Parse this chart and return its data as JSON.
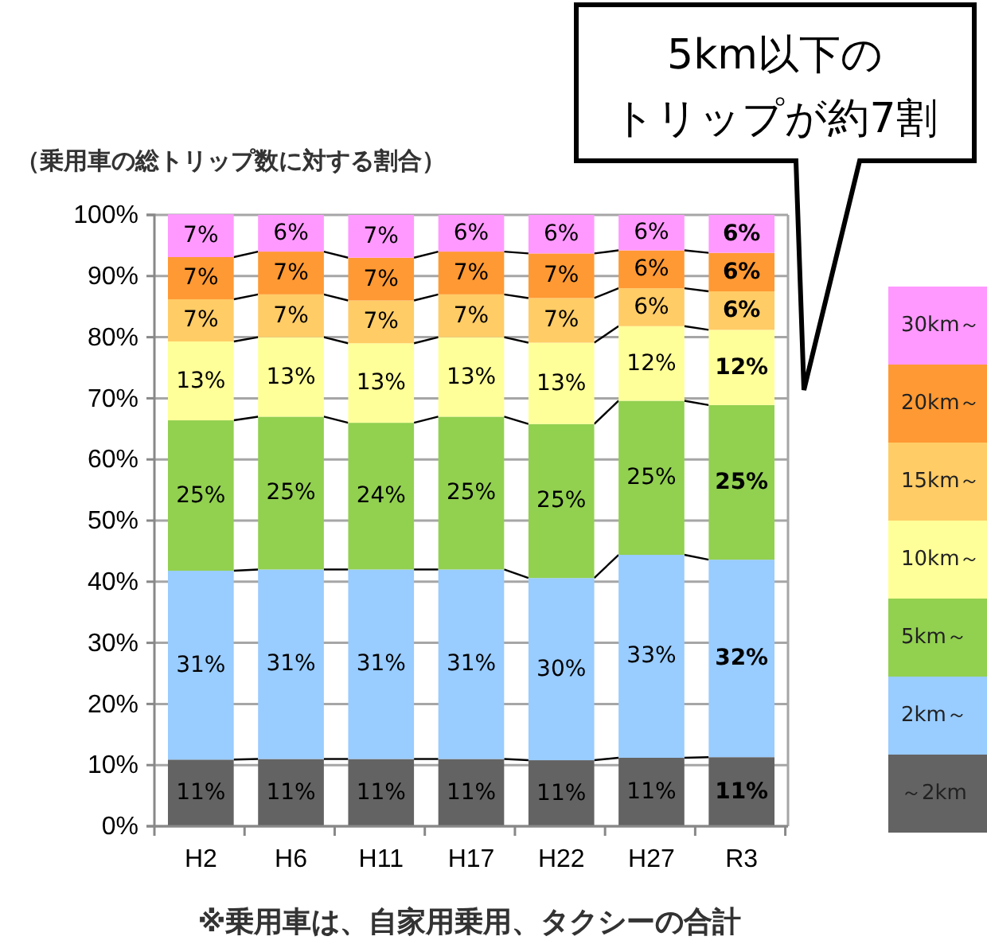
{
  "chart_data": {
    "type": "bar",
    "stacked": true,
    "subtitle": "（乗用車の総トリップ数に対する割合）",
    "categories": [
      "H2",
      "H6",
      "H11",
      "H17",
      "H22",
      "H27",
      "R3"
    ],
    "ylim": [
      0,
      100
    ],
    "yticks": [
      {
        "value": 0,
        "label": "0%"
      },
      {
        "value": 10,
        "label": "10%"
      },
      {
        "value": 20,
        "label": "20%"
      },
      {
        "value": 30,
        "label": "30%"
      },
      {
        "value": 40,
        "label": "40%"
      },
      {
        "value": 50,
        "label": "50%"
      },
      {
        "value": 60,
        "label": "60%"
      },
      {
        "value": 70,
        "label": "70%"
      },
      {
        "value": 80,
        "label": "80%"
      },
      {
        "value": 90,
        "label": "90%"
      },
      {
        "value": 100,
        "label": "100%"
      }
    ],
    "grid": "y",
    "legend": "right",
    "series": [
      {
        "name": "～2km",
        "color": "#636363",
        "values": [
          10.9,
          11,
          11,
          11,
          10.8,
          11.2,
          11.3
        ],
        "value_labels": [
          "11%",
          "11%",
          "11%",
          "11%",
          "11%",
          "11%",
          "11%"
        ]
      },
      {
        "name": "2km～",
        "color": "#99ccff",
        "values": [
          30.9,
          31,
          31,
          31,
          29.8,
          33.2,
          32.3
        ],
        "value_labels": [
          "31%",
          "31%",
          "31%",
          "31%",
          "30%",
          "33%",
          "32%"
        ]
      },
      {
        "name": "5km～",
        "color": "#92d050",
        "values": [
          24.6,
          25,
          24,
          25,
          25.2,
          25.2,
          25.3
        ],
        "value_labels": [
          "25%",
          "25%",
          "24%",
          "25%",
          "25%",
          "25%",
          "25%"
        ]
      },
      {
        "name": "10km～",
        "color": "#ffff99",
        "values": [
          12.9,
          13,
          13,
          13,
          13.3,
          12.2,
          12.3
        ],
        "value_labels": [
          "13%",
          "13%",
          "13%",
          "13%",
          "13%",
          "12%",
          "12%"
        ]
      },
      {
        "name": "15km～",
        "color": "#ffcc66",
        "values": [
          6.9,
          7,
          7,
          7,
          7.3,
          6.2,
          6.3
        ],
        "value_labels": [
          "7%",
          "7%",
          "7%",
          "7%",
          "7%",
          "6%",
          "6%"
        ]
      },
      {
        "name": "20km～",
        "color": "#ff9933",
        "values": [
          6.9,
          7,
          7,
          7,
          7.3,
          6.2,
          6.3
        ],
        "value_labels": [
          "7%",
          "7%",
          "7%",
          "7%",
          "7%",
          "6%",
          "6%"
        ]
      },
      {
        "name": "30km～",
        "color": "#ff99ff",
        "values": [
          7,
          6,
          7,
          6,
          6.3,
          5.8,
          6.2
        ],
        "value_labels": [
          "7%",
          "6%",
          "7%",
          "6%",
          "6%",
          "6%",
          "6%"
        ]
      }
    ],
    "annotations": [
      "5km以下のトリップが約7割",
      "※乗用車は、自家用乗用、タクシーの合計"
    ]
  }
}
